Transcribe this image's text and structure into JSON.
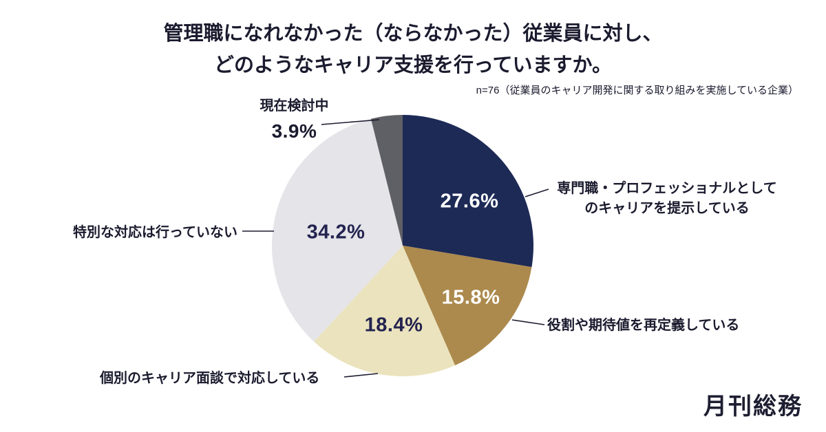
{
  "title": {
    "line1": "管理職になれなかった（ならなかった）従業員に対し、",
    "line2": "どのようなキャリア支援を行っていますか。"
  },
  "note": "n=76（従業員のキャリア開発に関する取り組みを実施している企業）",
  "logo": "月刊総務",
  "chart_data": {
    "type": "pie",
    "title": "管理職になれなかった（ならなかった）従業員に対し、どのようなキャリア支援を行っていますか。",
    "n": 76,
    "unit": "%",
    "start_angle_deg": 0,
    "direction": "clockwise",
    "legend": "callout-labels",
    "slices": [
      {
        "label": "専門職・プロフェッショナルとしてのキャリアを提示している",
        "value": 27.6,
        "pct_label": "27.6%",
        "color": "#1d2a56",
        "text_color": "#ffffff"
      },
      {
        "label": "役割や期待値を再定義している",
        "value": 15.8,
        "pct_label": "15.8%",
        "color": "#ac8a4d",
        "text_color": "#ffffff"
      },
      {
        "label": "個別のキャリア面談で対応している",
        "value": 18.4,
        "pct_label": "18.4%",
        "color": "#ebe3bd",
        "text_color": "#232350"
      },
      {
        "label": "特別な対応は行っていない",
        "value": 34.2,
        "pct_label": "34.2%",
        "color": "#e4e4e9",
        "text_color": "#232350"
      },
      {
        "label": "現在検討中",
        "value": 3.9,
        "pct_label": "3.9%",
        "color": "#5f5f66",
        "text_color": "#1b1b2f"
      }
    ]
  }
}
